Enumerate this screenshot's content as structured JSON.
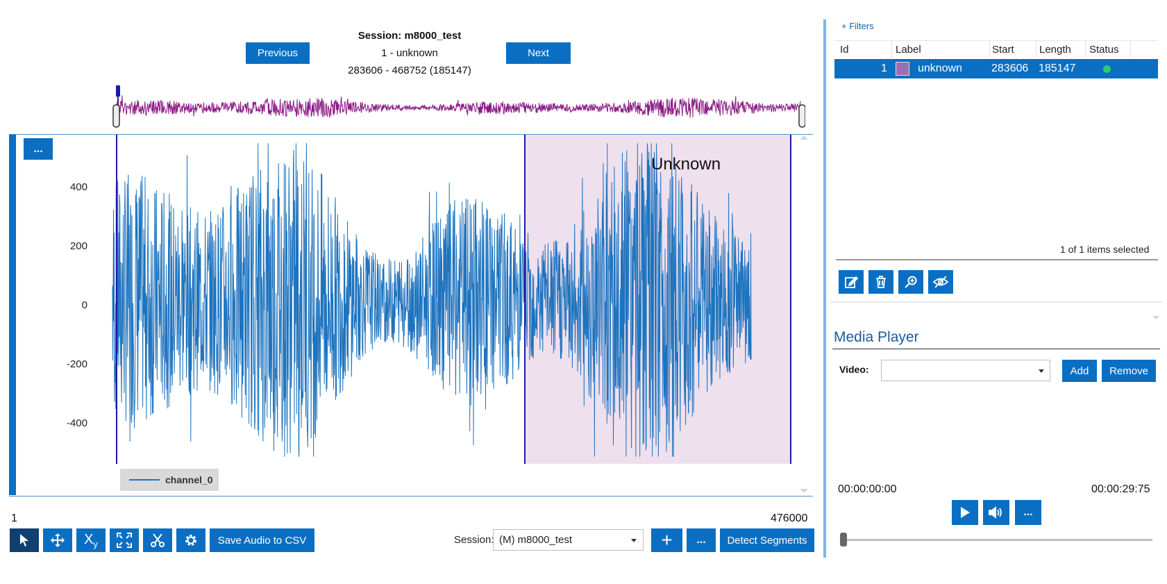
{
  "navigation": {
    "session_title": "Session: m8000_test",
    "segment_label": "1 - unknown",
    "segment_range": "283606 - 468752 (185147)",
    "previous_label": "Previous",
    "next_label": "Next"
  },
  "waveform": {
    "menu_label": "...",
    "region_label": "Unknown",
    "y_ticks": [
      "400",
      "200",
      "0",
      "-200",
      "-400"
    ],
    "legend_label": "channel_0",
    "x_start": "1",
    "x_end": "476000",
    "colors": {
      "signal": "#1e73be",
      "overview": "#8b1a85",
      "region": "#efe0ee",
      "marker": "#1a1aa8"
    }
  },
  "toolbar": {
    "tool_icons": [
      "pointer-icon",
      "move-icon",
      "xy-scale-icon",
      "fit-icon",
      "cut-icon",
      "gear-icon"
    ],
    "save_csv_label": "Save Audio to CSV",
    "session_label": "Session:",
    "session_value": "(M) m8000_test",
    "add_label": "+",
    "more_label": "...",
    "detect_label": "Detect Segments"
  },
  "annotations": {
    "filters_label": "+ Filters",
    "columns": [
      "Id",
      "Label",
      "Start",
      "Length",
      "Status"
    ],
    "rows": [
      {
        "id": "1",
        "label": "unknown",
        "start": "283606",
        "length": "185147",
        "status_color": "#2ecc71",
        "label_color": "#9b6fb5"
      }
    ],
    "selection_status": "1 of 1 items selected",
    "action_icons": [
      "edit-icon",
      "trash-icon",
      "zoom-icon",
      "hide-icon"
    ]
  },
  "media_player": {
    "title": "Media Player",
    "video_label": "Video:",
    "video_value": "",
    "add_label": "Add",
    "remove_label": "Remove",
    "time_current": "00:00:00:00",
    "time_total": "00:00:29:75",
    "more_label": "..."
  }
}
